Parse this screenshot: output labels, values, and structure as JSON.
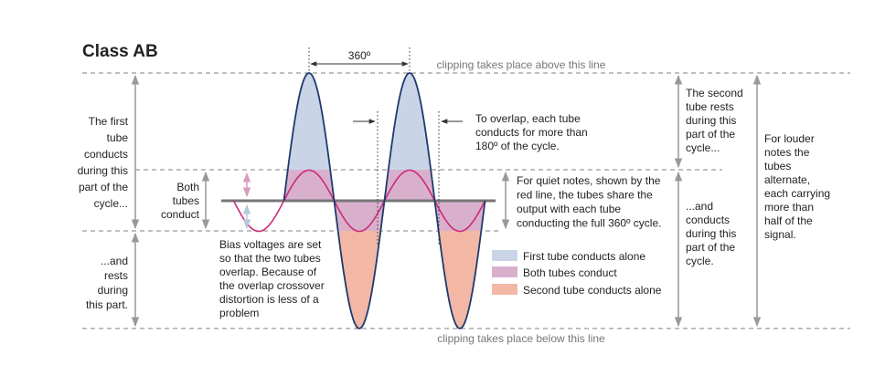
{
  "title": "Class AB",
  "labels": {
    "period": "360º",
    "clip_top": "clipping takes place above this line",
    "clip_bottom": "clipping takes place below this line"
  },
  "notes": {
    "first_tube_conducts": [
      "The first",
      "tube",
      "conducts",
      "during this",
      "part of the",
      "cycle..."
    ],
    "first_tube_rests": [
      "...and",
      "rests",
      "during",
      "this part."
    ],
    "both_tubes": [
      "Both",
      "tubes",
      "conduct"
    ],
    "bias": [
      "Bias voltages are set",
      "so that the two tubes",
      "overlap. Because of",
      "the overlap crossover",
      "distortion is less of a",
      "problem"
    ],
    "overlap": [
      "To overlap, each tube",
      "conducts for more than",
      "180º of the cycle."
    ],
    "quiet": [
      "For quiet notes, shown by the",
      "red line, the tubes share the",
      "output with each tube",
      "conducting the full 360º cycle."
    ],
    "second_tube_rests": [
      "The second",
      "tube rests",
      "during this",
      "part of the",
      "cycle..."
    ],
    "second_tube_conducts": [
      "...and",
      "conducts",
      "during this",
      "part of the",
      "cycle."
    ],
    "louder": [
      "For louder",
      "notes the",
      "tubes",
      "alternate,",
      "each carrying",
      "more than",
      "half of the",
      "signal."
    ]
  },
  "legend": [
    "First tube conducts alone",
    "Both tubes conduct",
    "Second tube conducts alone"
  ]
}
